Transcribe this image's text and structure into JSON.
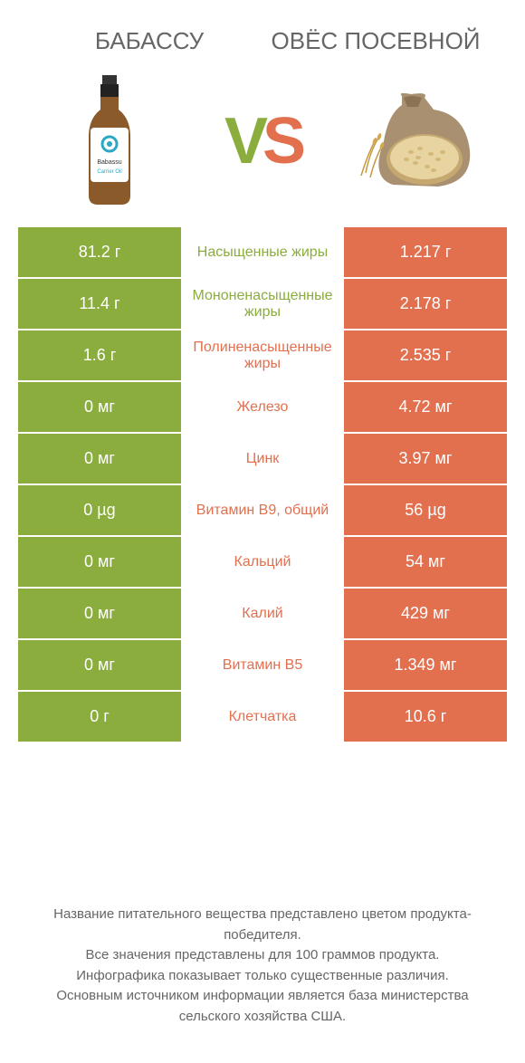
{
  "colors": {
    "left": "#8aad3e",
    "right": "#e2704f",
    "text": "#666666",
    "white": "#ffffff"
  },
  "products": {
    "left": {
      "title": "БАБАССУ"
    },
    "right": {
      "title": "ОВЁС ПОСЕВНОЙ"
    }
  },
  "vs": {
    "v": "V",
    "s": "S"
  },
  "rows": [
    {
      "left": "81.2 г",
      "label": "Насыщенные жиры",
      "right": "1.217 г",
      "winner": "left"
    },
    {
      "left": "11.4 г",
      "label": "Мононенасыщенные жиры",
      "right": "2.178 г",
      "winner": "left"
    },
    {
      "left": "1.6 г",
      "label": "Полиненасыщенные жиры",
      "right": "2.535 г",
      "winner": "right"
    },
    {
      "left": "0 мг",
      "label": "Железо",
      "right": "4.72 мг",
      "winner": "right"
    },
    {
      "left": "0 мг",
      "label": "Цинк",
      "right": "3.97 мг",
      "winner": "right"
    },
    {
      "left": "0 µg",
      "label": "Витамин B9, общий",
      "right": "56 µg",
      "winner": "right"
    },
    {
      "left": "0 мг",
      "label": "Кальций",
      "right": "54 мг",
      "winner": "right"
    },
    {
      "left": "0 мг",
      "label": "Калий",
      "right": "429 мг",
      "winner": "right"
    },
    {
      "left": "0 мг",
      "label": "Витамин B5",
      "right": "1.349 мг",
      "winner": "right"
    },
    {
      "left": "0 г",
      "label": "Клетчатка",
      "right": "10.6 г",
      "winner": "right"
    }
  ],
  "footer": {
    "line1": "Название питательного вещества представлено цветом продукта-победителя.",
    "line2": "Все значения представлены для 100 граммов продукта.",
    "line3": "Инфографика показывает только существенные различия.",
    "line4": "Основным источником информации является база министерства сельского хозяйства США."
  }
}
